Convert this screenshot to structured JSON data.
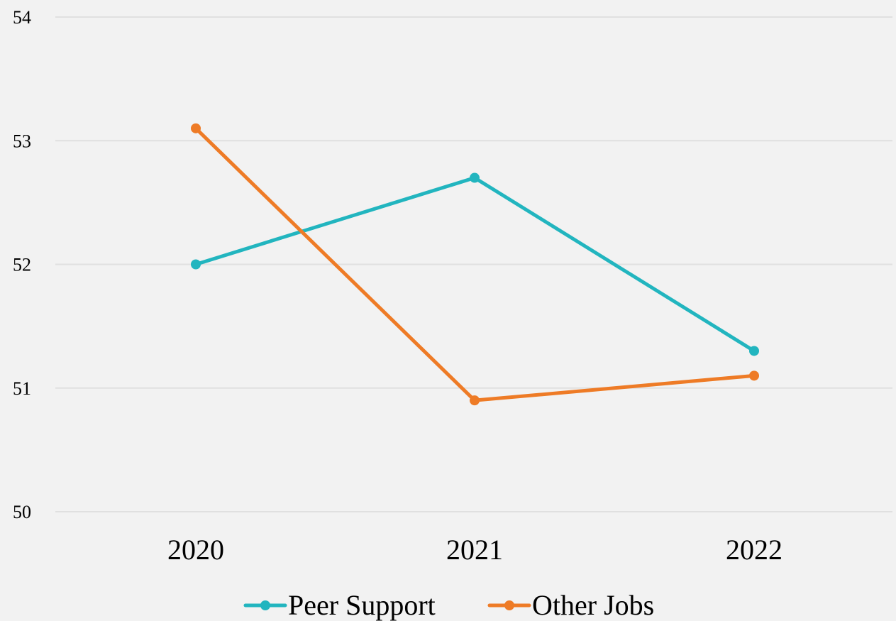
{
  "chart_data": {
    "type": "line",
    "title": "",
    "xlabel": "",
    "ylabel": "",
    "categories": [
      "2020",
      "2021",
      "2022"
    ],
    "ylim": [
      50,
      54
    ],
    "yticks": [
      50,
      51,
      52,
      53,
      54
    ],
    "grid": true,
    "legend_position": "bottom",
    "series": [
      {
        "name": "Peer Support",
        "color": "#22b5bf",
        "values": [
          52.0,
          52.7,
          51.3
        ]
      },
      {
        "name": "Other Jobs",
        "color": "#ee7b26",
        "values": [
          53.1,
          50.9,
          51.1
        ]
      }
    ]
  }
}
